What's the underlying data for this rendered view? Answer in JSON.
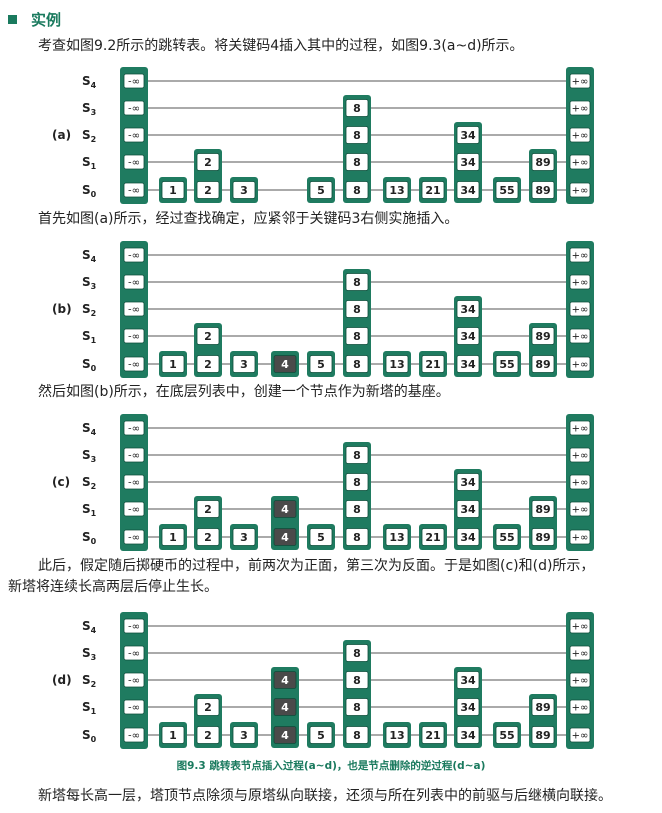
{
  "section": {
    "title": "实例"
  },
  "intro": "考查如图9.2所示的跳转表。将关键码4插入其中的过程，如图9.3(a~d)所示。",
  "levels": [
    "S",
    "S",
    "S",
    "S",
    "S"
  ],
  "level_subs": [
    "4",
    "3",
    "2",
    "1",
    "0"
  ],
  "neg_inf": "-∞",
  "pos_inf": "+∞",
  "keys": [
    "1",
    "2",
    "3",
    "4",
    "5",
    "8",
    "13",
    "21",
    "34",
    "55",
    "89"
  ],
  "panels": [
    {
      "label": "(a)",
      "heights": [
        1,
        2,
        1,
        0,
        1,
        4,
        1,
        1,
        3,
        1,
        2
      ],
      "new_key_index": null
    },
    {
      "label": "(b)",
      "heights": [
        1,
        2,
        1,
        1,
        1,
        4,
        1,
        1,
        3,
        1,
        2
      ],
      "new_key_index": 3
    },
    {
      "label": "(c)",
      "heights": [
        1,
        2,
        1,
        2,
        1,
        4,
        1,
        1,
        3,
        1,
        2
      ],
      "new_key_index": 3
    },
    {
      "label": "(d)",
      "heights": [
        1,
        2,
        1,
        3,
        1,
        4,
        1,
        1,
        3,
        1,
        2
      ],
      "new_key_index": 3
    }
  ],
  "text_a": "首先如图(a)所示，经过查找确定，应紧邻于关键码3右侧实施插入。",
  "text_b": "然后如图(b)所示，在底层列表中，创建一个节点作为新塔的基座。",
  "text_c1": "此后，假定随后掷硬币的过程中，前两次为正面，第三次为反面。于是如图(c)和(d)所示，",
  "text_c2": "新塔将连续长高两层后停止生长。",
  "caption": "图9.3  跳转表节点插入过程(a~d)，也是节点删除的逆过程(d~a)",
  "footer": "新塔每长高一层，塔顶节点除须与原塔纵向联接，还须与所在列表中的前驱与后继横向联接。",
  "colors": {
    "accent": "#1a7a5e",
    "tower": "#1f7b60",
    "new_node": "#4a4a4a",
    "cell": "#ffffff"
  }
}
